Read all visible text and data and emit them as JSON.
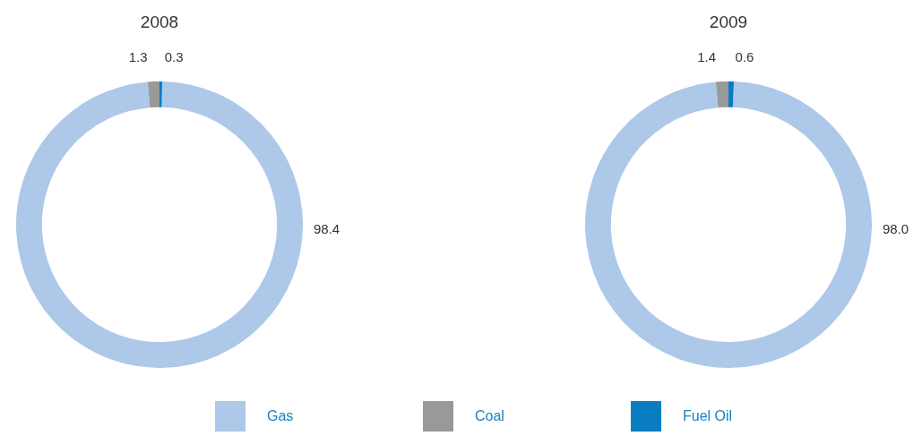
{
  "chart_data": [
    {
      "type": "donut",
      "title": "2008",
      "categories": [
        "Gas",
        "Coal",
        "Fuel Oil"
      ],
      "values": [
        98.4,
        1.3,
        0.3
      ],
      "colors": [
        "#adc8e8",
        "#999999",
        "#0a7dc2"
      ],
      "value_labels": [
        "98.4",
        "1.3",
        "0.3"
      ],
      "legend": "bottom"
    },
    {
      "type": "donut",
      "title": "2009",
      "categories": [
        null,
        null,
        null
      ],
      "values": [
        98.0,
        1.4,
        0.6
      ],
      "colors": [
        "#adc8e8",
        "#999999",
        "#0a7dc2"
      ],
      "value_labels": [
        "98.0",
        "1.4",
        "0.6"
      ]
    }
  ]
}
